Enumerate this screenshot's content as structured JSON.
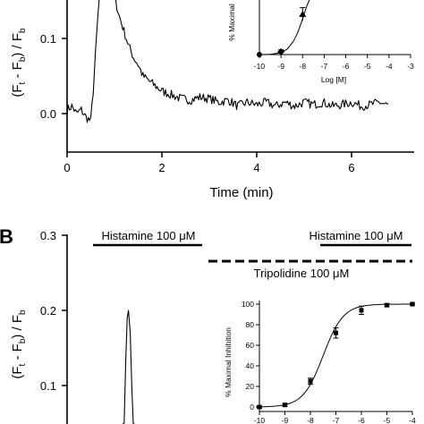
{
  "panel_b_label": "B",
  "chart_data": [
    {
      "type": "line",
      "panel": "A",
      "xlabel": "Time (min)",
      "ylabel_main": "(F",
      "ylabel_sub1": "t",
      "ylabel_mid": " - F",
      "ylabel_sub2": "b",
      "ylabel_end": ") / F",
      "ylabel_sub3": "b",
      "xlim": [
        0,
        7
      ],
      "ylim": [
        -0.07,
        0.2
      ],
      "x_ticks": [
        {
          "value": 0,
          "label": "0"
        },
        {
          "value": 2,
          "label": "2"
        },
        {
          "value": 4,
          "label": "4"
        },
        {
          "value": 6,
          "label": "6"
        }
      ],
      "y_ticks": [
        {
          "value": 0.0,
          "label": "0.0"
        },
        {
          "value": 0.1,
          "label": "0.1"
        }
      ],
      "trace": [
        [
          0.0,
          0.005
        ],
        [
          0.1,
          0.01
        ],
        [
          0.2,
          0.0
        ],
        [
          0.3,
          0.005
        ],
        [
          0.4,
          -0.005
        ],
        [
          0.5,
          -0.01
        ],
        [
          0.55,
          0.03
        ],
        [
          0.6,
          0.08
        ],
        [
          0.65,
          0.13
        ],
        [
          0.7,
          0.17
        ],
        [
          0.8,
          0.2
        ],
        [
          0.9,
          0.175
        ],
        [
          1.0,
          0.155
        ],
        [
          1.1,
          0.13
        ],
        [
          1.2,
          0.11
        ],
        [
          1.3,
          0.09
        ],
        [
          1.4,
          0.075
        ],
        [
          1.5,
          0.065
        ],
        [
          1.6,
          0.05
        ],
        [
          1.7,
          0.045
        ],
        [
          1.8,
          0.04
        ],
        [
          2.0,
          0.03
        ],
        [
          2.2,
          0.025
        ],
        [
          2.4,
          0.02
        ],
        [
          2.6,
          0.018
        ],
        [
          2.8,
          0.022
        ],
        [
          3.0,
          0.02
        ],
        [
          3.2,
          0.015
        ],
        [
          3.4,
          0.018
        ],
        [
          3.6,
          0.01
        ],
        [
          3.8,
          0.015
        ],
        [
          4.0,
          0.012
        ],
        [
          4.2,
          0.015
        ],
        [
          4.4,
          0.01
        ],
        [
          4.6,
          0.015
        ],
        [
          4.8,
          0.01
        ],
        [
          5.0,
          0.015
        ],
        [
          5.2,
          0.012
        ],
        [
          5.4,
          0.015
        ],
        [
          5.6,
          0.01
        ],
        [
          5.8,
          0.012
        ],
        [
          6.0,
          0.015
        ],
        [
          6.2,
          0.01
        ],
        [
          6.4,
          0.012
        ],
        [
          6.6,
          0.015
        ],
        [
          6.8,
          0.01
        ]
      ]
    },
    {
      "type": "scatter",
      "panel": "A-inset",
      "xlabel": "Log [M]",
      "ylabel": "% Maximal",
      "xlim": [
        -10,
        -3
      ],
      "x_ticks": [
        {
          "value": -10,
          "label": "-10"
        },
        {
          "value": -9,
          "label": "-9"
        },
        {
          "value": -8,
          "label": "-8"
        },
        {
          "value": -7,
          "label": "-7"
        },
        {
          "value": -6,
          "label": "-6"
        },
        {
          "value": -5,
          "label": "-5"
        },
        {
          "value": -4,
          "label": "-4"
        },
        {
          "value": -3,
          "label": "-3"
        }
      ],
      "ylim": [
        0,
        60
      ],
      "points": [
        {
          "x": -10,
          "y": 0,
          "marker": "circle"
        },
        {
          "x": -9,
          "y": 3,
          "err": 2,
          "marker": "diamond"
        },
        {
          "x": -8,
          "y": 43,
          "err": 7,
          "marker": "triangle"
        }
      ],
      "curve": [
        [
          -10,
          0
        ],
        [
          -9.5,
          0.3
        ],
        [
          -9,
          2
        ],
        [
          -8.7,
          6
        ],
        [
          -8.4,
          15
        ],
        [
          -8.2,
          25
        ],
        [
          -8,
          38
        ],
        [
          -7.8,
          52
        ],
        [
          -7.65,
          60
        ]
      ]
    },
    {
      "type": "line",
      "panel": "B",
      "ylabel_main": "(F",
      "ylabel_sub1": "t",
      "ylabel_mid": " - F",
      "ylabel_sub2": "b",
      "ylabel_end": ") / F",
      "ylabel_sub3": "b",
      "ylim": [
        0,
        0.3
      ],
      "y_ticks": [
        {
          "value": 0.1,
          "label": "0.1"
        },
        {
          "value": 0.2,
          "label": "0.2"
        },
        {
          "value": 0.3,
          "label": "0.3"
        }
      ],
      "annotations": {
        "histamine_1": "Histamine 100 μM",
        "histamine_2": "Histamine 100 μM",
        "tripolidine": "Tripolidine 100 μM"
      },
      "trace": [
        [
          1.15,
          0.0
        ],
        [
          1.2,
          0.05
        ],
        [
          1.25,
          0.13
        ],
        [
          1.3,
          0.19
        ],
        [
          1.34,
          0.2
        ],
        [
          1.4,
          0.17
        ],
        [
          1.45,
          0.1
        ],
        [
          1.5,
          0.03
        ],
        [
          1.55,
          0.0
        ]
      ]
    },
    {
      "type": "line",
      "panel": "B-inset",
      "ylabel": "% Maximal Inhibition",
      "xlim": [
        -10,
        -4
      ],
      "ylim": [
        0,
        100
      ],
      "x_ticks": [
        {
          "value": -10,
          "label": "-10"
        },
        {
          "value": -9,
          "label": "-9"
        },
        {
          "value": -8,
          "label": "-8"
        },
        {
          "value": -7,
          "label": "-7"
        },
        {
          "value": -6,
          "label": "-6"
        },
        {
          "value": -5,
          "label": "-5"
        },
        {
          "value": -4,
          "label": "-4"
        }
      ],
      "y_ticks": [
        {
          "value": 0,
          "label": "0"
        },
        {
          "value": 20,
          "label": "20"
        },
        {
          "value": 40,
          "label": "40"
        },
        {
          "value": 60,
          "label": "60"
        },
        {
          "value": 80,
          "label": "80"
        },
        {
          "value": 100,
          "label": "100"
        }
      ],
      "points": [
        {
          "x": -10,
          "y": 0,
          "err": 1
        },
        {
          "x": -9,
          "y": 2,
          "err": 1.5
        },
        {
          "x": -8,
          "y": 25,
          "err": 3
        },
        {
          "x": -7,
          "y": 72,
          "err": 5
        },
        {
          "x": -6,
          "y": 94,
          "err": 4
        },
        {
          "x": -5,
          "y": 99,
          "err": 1.5
        },
        {
          "x": -4,
          "y": 100,
          "err": 1
        }
      ],
      "curve_fit": {
        "bottom": 0,
        "top": 100,
        "log_ic50": -7.5,
        "hill": 1.1
      }
    }
  ]
}
